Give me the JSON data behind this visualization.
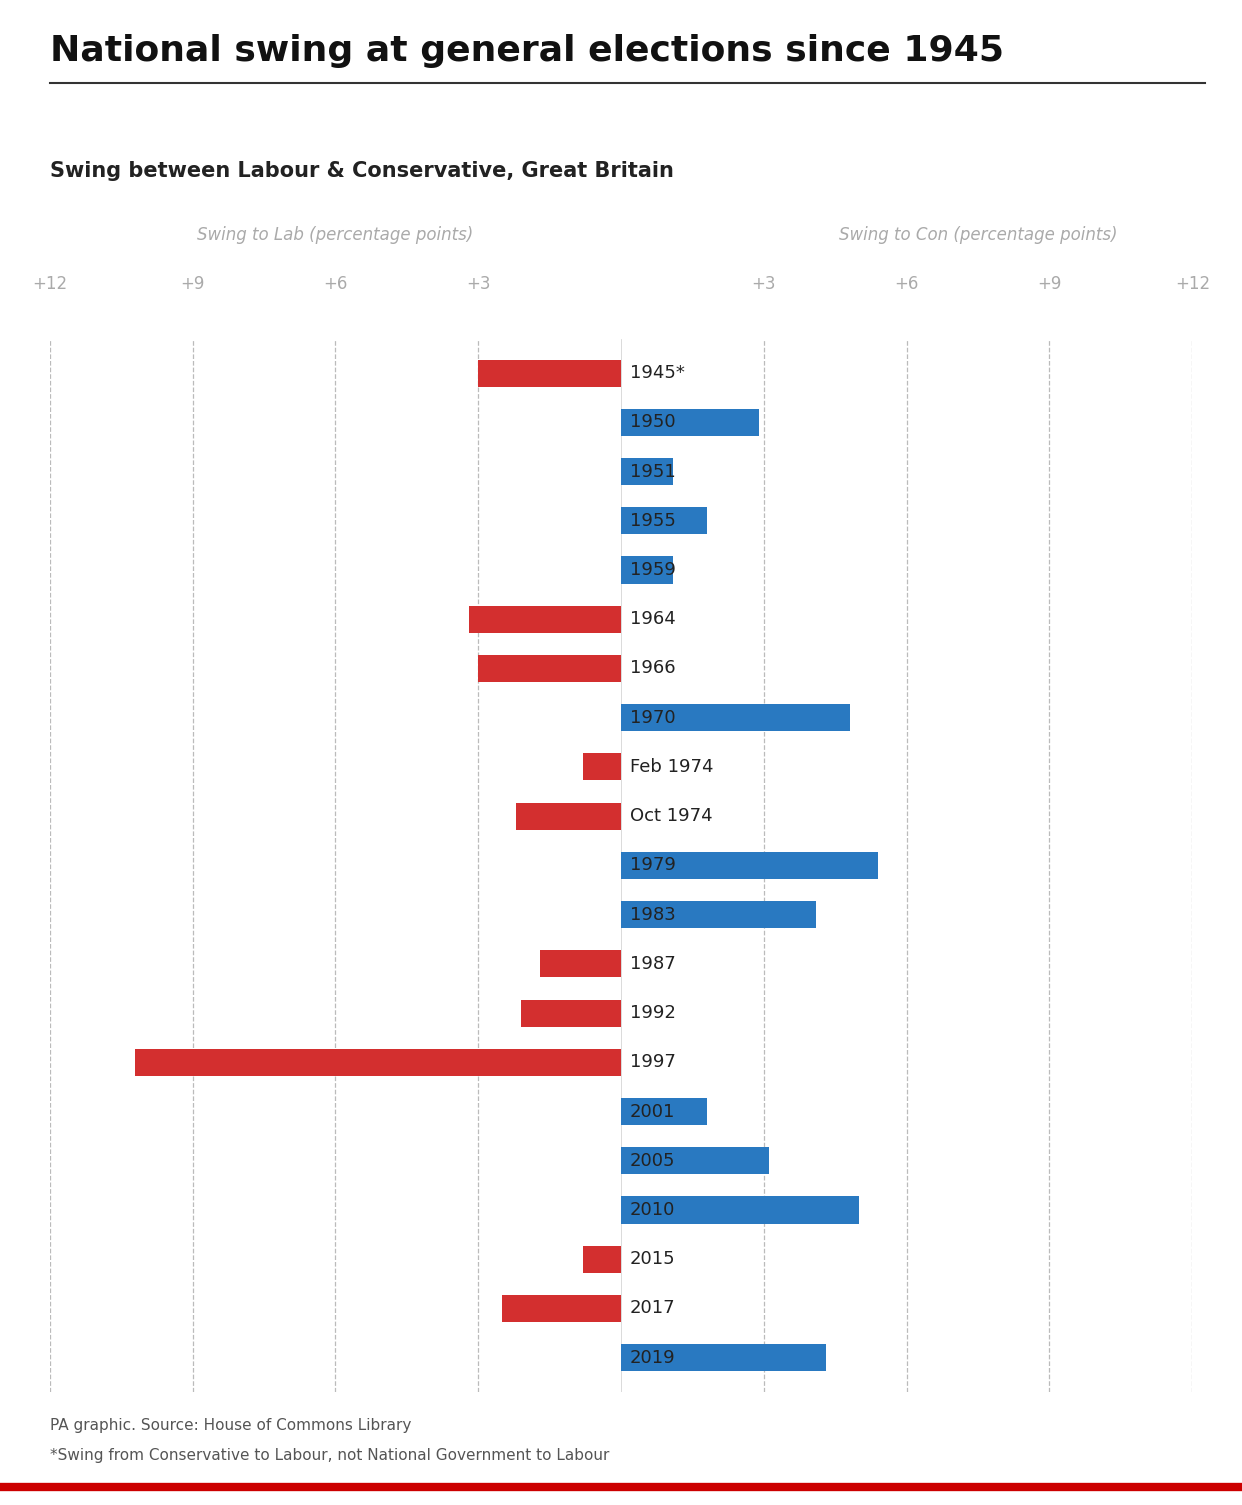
{
  "title": "National swing at general elections since 1945",
  "subtitle": "Swing between Labour & Conservative, Great Britain",
  "left_axis_label": "Swing to Lab (percentage points)",
  "right_axis_label": "Swing to Con (percentage points)",
  "footnote1": "PA graphic. Source: House of Commons Library",
  "footnote2": "*Swing from Conservative to Labour, not National Government to Labour",
  "elections": [
    {
      "year": "1945*",
      "swing": -3.0
    },
    {
      "year": "1950",
      "swing": 2.9
    },
    {
      "year": "1951",
      "swing": 1.1
    },
    {
      "year": "1955",
      "swing": 1.8
    },
    {
      "year": "1959",
      "swing": 1.1
    },
    {
      "year": "1964",
      "swing": -3.2
    },
    {
      "year": "1966",
      "swing": -3.0
    },
    {
      "year": "1970",
      "swing": 4.8
    },
    {
      "year": "Feb 1974",
      "swing": -0.8
    },
    {
      "year": "Oct 1974",
      "swing": -2.2
    },
    {
      "year": "1979",
      "swing": 5.4
    },
    {
      "year": "1983",
      "swing": 4.1
    },
    {
      "year": "1987",
      "swing": -1.7
    },
    {
      "year": "1992",
      "swing": -2.1
    },
    {
      "year": "1997",
      "swing": -10.2
    },
    {
      "year": "2001",
      "swing": 1.8
    },
    {
      "year": "2005",
      "swing": 3.1
    },
    {
      "year": "2010",
      "swing": 5.0
    },
    {
      "year": "2015",
      "swing": -0.8
    },
    {
      "year": "2017",
      "swing": -2.5
    },
    {
      "year": "2019",
      "swing": 4.3
    }
  ],
  "lab_color": "#d32f2f",
  "con_color": "#2979c1",
  "axis_color": "#aaaaaa",
  "grid_color": "#aaaaaa",
  "title_color": "#111111",
  "subtitle_color": "#333333",
  "footnote_color": "#555555",
  "xlim": [
    -12,
    12
  ],
  "gridlines": [
    -12,
    -9,
    -6,
    -3,
    3,
    6,
    9,
    12
  ],
  "left_ticks": [
    [
      -12,
      "+12"
    ],
    [
      -9,
      "+9"
    ],
    [
      -6,
      "+6"
    ],
    [
      -3,
      "+3"
    ]
  ],
  "right_ticks": [
    [
      3,
      "+3"
    ],
    [
      6,
      "+6"
    ],
    [
      9,
      "+9"
    ],
    [
      12,
      "+12"
    ]
  ],
  "background_color": "#ffffff",
  "bar_height": 0.55
}
